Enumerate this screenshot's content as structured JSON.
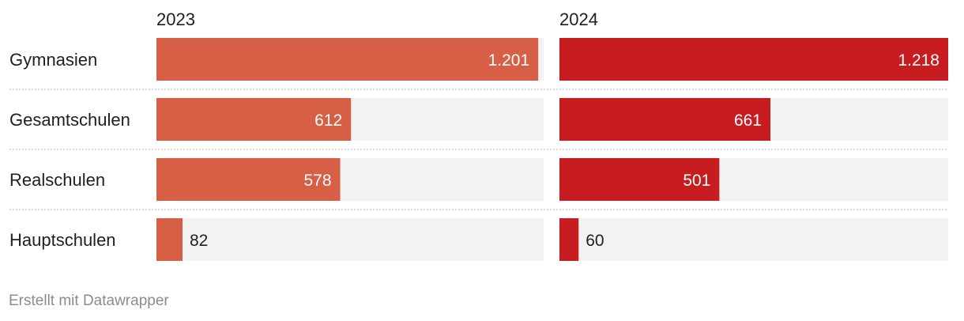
{
  "footer": "Erstellt mit Datawrapper",
  "colors": {
    "series_2023": "#d65f45",
    "series_2024": "#c71d20",
    "track": "#f2f2f2",
    "separator": "#b5b5b5"
  },
  "chart_data": {
    "type": "bar",
    "orientation": "horizontal",
    "layout": "small-multiples",
    "categories": [
      "Gymnasien",
      "Gesamtschulen",
      "Realschulen",
      "Hauptschulen"
    ],
    "series": [
      {
        "name": "2023",
        "values": [
          1201,
          612,
          578,
          82
        ],
        "labels": [
          "1.201",
          "612",
          "578",
          "82"
        ]
      },
      {
        "name": "2024",
        "values": [
          1218,
          661,
          501,
          60
        ],
        "labels": [
          "1.218",
          "661",
          "501",
          "60"
        ]
      }
    ],
    "xlim": [
      0,
      1218
    ],
    "grid": false
  }
}
